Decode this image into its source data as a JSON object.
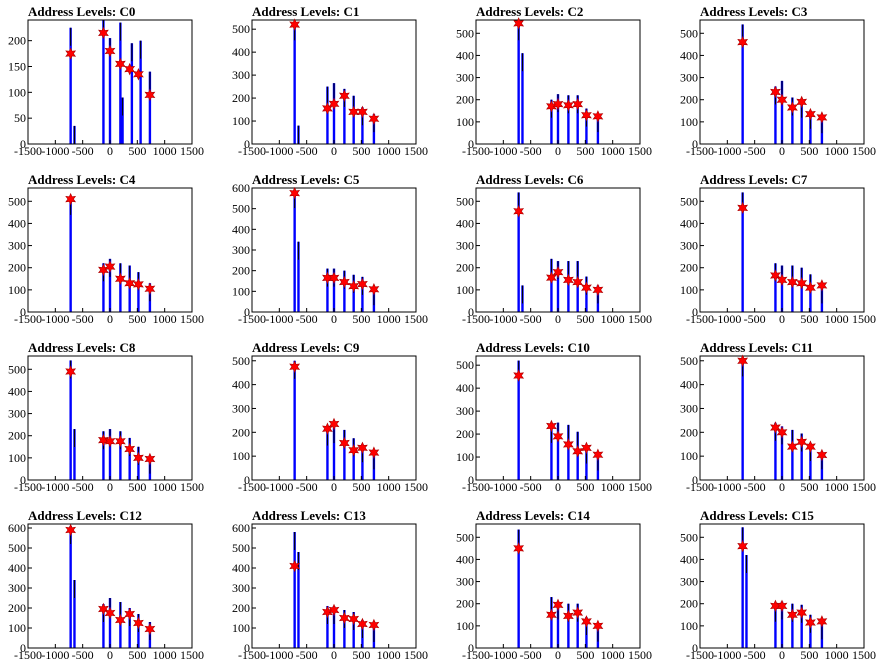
{
  "colors": {
    "histogram": "#0000ff",
    "peak_line": "#000000",
    "marker": "#ff0000",
    "marker_edge": "#aa0000",
    "frame": "#000000"
  },
  "chart_data": [
    {
      "type": "bar",
      "title": "Address Levels: C0",
      "xlim": [
        -1500,
        1500
      ],
      "ylim": [
        0,
        240
      ],
      "x_ticks": [
        -1500,
        -1000,
        -500,
        0,
        500,
        1000,
        1500
      ],
      "y_ticks": [
        0,
        50,
        100,
        150,
        200
      ],
      "histogram_x": [
        -720,
        -650,
        -120,
        0,
        190,
        230,
        400,
        560,
        730
      ],
      "histogram_y": [
        225,
        35,
        240,
        205,
        235,
        90,
        195,
        200,
        140
      ],
      "marker_x": [
        -720,
        -120,
        0,
        190,
        360,
        520,
        730
      ],
      "marker_y": [
        175,
        215,
        180,
        155,
        145,
        135,
        95
      ]
    },
    {
      "type": "bar",
      "title": "Address Levels: C1",
      "xlim": [
        -1500,
        1500
      ],
      "ylim": [
        0,
        540
      ],
      "x_ticks": [
        -1500,
        -1000,
        -500,
        0,
        500,
        1000,
        1500
      ],
      "y_ticks": [
        0,
        100,
        200,
        300,
        400,
        500
      ],
      "histogram_x": [
        -720,
        -650,
        -120,
        0,
        190,
        360,
        520,
        730
      ],
      "histogram_y": [
        530,
        80,
        250,
        265,
        240,
        210,
        160,
        130
      ],
      "marker_x": [
        -720,
        -120,
        0,
        190,
        360,
        520,
        730
      ],
      "marker_y": [
        520,
        155,
        175,
        210,
        140,
        140,
        110
      ]
    },
    {
      "type": "bar",
      "title": "Address Levels: C2",
      "xlim": [
        -1500,
        1500
      ],
      "ylim": [
        0,
        560
      ],
      "x_ticks": [
        -1500,
        -1000,
        -500,
        0,
        500,
        1000,
        1500
      ],
      "y_ticks": [
        0,
        100,
        200,
        300,
        400,
        500
      ],
      "histogram_x": [
        -720,
        -650,
        -120,
        0,
        190,
        360,
        520,
        730
      ],
      "histogram_y": [
        550,
        410,
        200,
        225,
        220,
        220,
        160,
        135
      ],
      "marker_x": [
        -720,
        -120,
        0,
        190,
        360,
        520,
        730
      ],
      "marker_y": [
        545,
        170,
        180,
        175,
        180,
        130,
        125
      ]
    },
    {
      "type": "bar",
      "title": "Address Levels: C3",
      "xlim": [
        -1500,
        1500
      ],
      "ylim": [
        0,
        560
      ],
      "x_ticks": [
        -1500,
        -1000,
        -500,
        0,
        500,
        1000,
        1500
      ],
      "y_ticks": [
        0,
        100,
        200,
        300,
        400,
        500
      ],
      "histogram_x": [
        -720,
        -120,
        0,
        190,
        360,
        520,
        730
      ],
      "histogram_y": [
        540,
        260,
        285,
        210,
        200,
        150,
        130
      ],
      "marker_x": [
        -720,
        -120,
        0,
        190,
        360,
        520,
        730
      ],
      "marker_y": [
        460,
        235,
        200,
        165,
        190,
        135,
        120
      ]
    },
    {
      "type": "bar",
      "title": "Address Levels: C4",
      "xlim": [
        -1500,
        1500
      ],
      "ylim": [
        0,
        560
      ],
      "x_ticks": [
        -1500,
        -1000,
        -500,
        0,
        500,
        1000,
        1500
      ],
      "y_ticks": [
        0,
        100,
        200,
        300,
        400,
        500
      ],
      "histogram_x": [
        -720,
        -120,
        0,
        190,
        360,
        520,
        730
      ],
      "histogram_y": [
        520,
        220,
        240,
        220,
        210,
        180,
        130
      ],
      "marker_x": [
        -720,
        -120,
        0,
        190,
        360,
        520,
        730
      ],
      "marker_y": [
        510,
        190,
        205,
        150,
        130,
        125,
        105
      ]
    },
    {
      "type": "bar",
      "title": "Address Levels: C5",
      "xlim": [
        -1500,
        1500
      ],
      "ylim": [
        0,
        600
      ],
      "x_ticks": [
        -1500,
        -1000,
        -500,
        0,
        500,
        1000,
        1500
      ],
      "y_ticks": [
        0,
        100,
        200,
        300,
        400,
        500,
        600
      ],
      "histogram_x": [
        -720,
        -650,
        -120,
        0,
        190,
        360,
        520,
        730
      ],
      "histogram_y": [
        590,
        340,
        210,
        210,
        200,
        180,
        170,
        120
      ],
      "marker_x": [
        -720,
        -120,
        0,
        190,
        360,
        520,
        730
      ],
      "marker_y": [
        575,
        165,
        165,
        145,
        125,
        135,
        110
      ]
    },
    {
      "type": "bar",
      "title": "Address Levels: C6",
      "xlim": [
        -1500,
        1500
      ],
      "ylim": [
        0,
        560
      ],
      "x_ticks": [
        -1500,
        -1000,
        -500,
        0,
        500,
        1000,
        1500
      ],
      "y_ticks": [
        0,
        100,
        200,
        300,
        400,
        500
      ],
      "histogram_x": [
        -720,
        -650,
        -120,
        0,
        190,
        360,
        520,
        730
      ],
      "histogram_y": [
        540,
        120,
        240,
        230,
        230,
        230,
        160,
        120
      ],
      "marker_x": [
        -720,
        -120,
        0,
        190,
        360,
        520,
        730
      ],
      "marker_y": [
        455,
        155,
        180,
        145,
        135,
        110,
        100
      ]
    },
    {
      "type": "bar",
      "title": "Address Levels: C7",
      "xlim": [
        -1500,
        1500
      ],
      "ylim": [
        0,
        560
      ],
      "x_ticks": [
        -1500,
        -1000,
        -500,
        0,
        500,
        1000,
        1500
      ],
      "y_ticks": [
        0,
        100,
        200,
        300,
        400,
        500
      ],
      "histogram_x": [
        -720,
        -120,
        0,
        190,
        360,
        520,
        730
      ],
      "histogram_y": [
        540,
        220,
        210,
        210,
        200,
        170,
        120
      ],
      "marker_x": [
        -720,
        -120,
        0,
        190,
        360,
        520,
        730
      ],
      "marker_y": [
        470,
        165,
        145,
        135,
        130,
        110,
        120
      ]
    },
    {
      "type": "bar",
      "title": "Address Levels: C8",
      "xlim": [
        -1500,
        1500
      ],
      "ylim": [
        0,
        560
      ],
      "x_ticks": [
        -1500,
        -1000,
        -500,
        0,
        500,
        1000,
        1500
      ],
      "y_ticks": [
        0,
        100,
        200,
        300,
        400,
        500
      ],
      "histogram_x": [
        -720,
        -650,
        -120,
        0,
        190,
        360,
        520,
        730
      ],
      "histogram_y": [
        540,
        230,
        220,
        230,
        220,
        190,
        150,
        110
      ],
      "marker_x": [
        -720,
        -120,
        0,
        190,
        360,
        520,
        730
      ],
      "marker_y": [
        490,
        180,
        175,
        175,
        140,
        100,
        95
      ]
    },
    {
      "type": "bar",
      "title": "Address Levels: C9",
      "xlim": [
        -1500,
        1500
      ],
      "ylim": [
        0,
        520
      ],
      "x_ticks": [
        -1500,
        -1000,
        -500,
        0,
        500,
        1000,
        1500
      ],
      "y_ticks": [
        0,
        100,
        200,
        300,
        400,
        500
      ],
      "histogram_x": [
        -720,
        -120,
        0,
        190,
        360,
        520,
        730
      ],
      "histogram_y": [
        500,
        220,
        230,
        210,
        175,
        150,
        120
      ],
      "marker_x": [
        -720,
        -120,
        0,
        190,
        360,
        520,
        730
      ],
      "marker_y": [
        475,
        215,
        235,
        155,
        125,
        135,
        115
      ]
    },
    {
      "type": "bar",
      "title": "Address Levels: C10",
      "xlim": [
        -1500,
        1500
      ],
      "ylim": [
        0,
        540
      ],
      "x_ticks": [
        -1500,
        -1000,
        -500,
        0,
        500,
        1000,
        1500
      ],
      "y_ticks": [
        0,
        100,
        200,
        300,
        400,
        500
      ],
      "histogram_x": [
        -720,
        -120,
        0,
        190,
        360,
        520,
        730
      ],
      "histogram_y": [
        520,
        240,
        250,
        240,
        210,
        150,
        120
      ],
      "marker_x": [
        -720,
        -120,
        0,
        190,
        360,
        520,
        730
      ],
      "marker_y": [
        455,
        235,
        190,
        155,
        125,
        140,
        110
      ]
    },
    {
      "type": "bar",
      "title": "Address Levels: C11",
      "xlim": [
        -1500,
        1500
      ],
      "ylim": [
        0,
        520
      ],
      "x_ticks": [
        -1500,
        -1000,
        -500,
        0,
        500,
        1000,
        1500
      ],
      "y_ticks": [
        0,
        100,
        200,
        300,
        400,
        500
      ],
      "histogram_x": [
        -720,
        -120,
        0,
        190,
        360,
        520,
        730
      ],
      "histogram_y": [
        510,
        240,
        225,
        210,
        195,
        155,
        120
      ],
      "marker_x": [
        -720,
        -120,
        0,
        190,
        360,
        520,
        730
      ],
      "marker_y": [
        500,
        220,
        200,
        140,
        160,
        140,
        105
      ]
    },
    {
      "type": "bar",
      "title": "Address Levels: C12",
      "xlim": [
        -1500,
        1500
      ],
      "ylim": [
        0,
        620
      ],
      "x_ticks": [
        -1500,
        -1000,
        -500,
        0,
        500,
        1000,
        1500
      ],
      "y_ticks": [
        0,
        100,
        200,
        300,
        400,
        500,
        600
      ],
      "histogram_x": [
        -720,
        -650,
        -120,
        0,
        190,
        360,
        520,
        730
      ],
      "histogram_y": [
        610,
        340,
        220,
        250,
        230,
        200,
        170,
        130
      ],
      "marker_x": [
        -720,
        -120,
        0,
        190,
        360,
        520,
        730
      ],
      "marker_y": [
        590,
        195,
        175,
        140,
        170,
        125,
        95
      ]
    },
    {
      "type": "bar",
      "title": "Address Levels: C13",
      "xlim": [
        -1500,
        1500
      ],
      "ylim": [
        0,
        620
      ],
      "x_ticks": [
        -1500,
        -1000,
        -500,
        0,
        500,
        1000,
        1500
      ],
      "y_ticks": [
        0,
        100,
        200,
        300,
        400,
        500,
        600
      ],
      "histogram_x": [
        -720,
        -650,
        -120,
        0,
        190,
        360,
        520,
        730
      ],
      "histogram_y": [
        580,
        480,
        210,
        210,
        190,
        180,
        140,
        120
      ],
      "marker_x": [
        -720,
        -120,
        0,
        190,
        360,
        520,
        730
      ],
      "marker_y": [
        410,
        180,
        190,
        150,
        145,
        120,
        115
      ]
    },
    {
      "type": "bar",
      "title": "Address Levels: C14",
      "xlim": [
        -1500,
        1500
      ],
      "ylim": [
        0,
        560
      ],
      "x_ticks": [
        -1500,
        -1000,
        -500,
        0,
        500,
        1000,
        1500
      ],
      "y_ticks": [
        0,
        100,
        200,
        300,
        400,
        500
      ],
      "histogram_x": [
        -720,
        -120,
        0,
        190,
        360,
        520,
        730
      ],
      "histogram_y": [
        535,
        230,
        210,
        200,
        200,
        140,
        110
      ],
      "marker_x": [
        -720,
        -120,
        0,
        190,
        360,
        520,
        730
      ],
      "marker_y": [
        450,
        150,
        195,
        145,
        160,
        120,
        100
      ]
    },
    {
      "type": "bar",
      "title": "Address Levels: C15",
      "xlim": [
        -1500,
        1500
      ],
      "ylim": [
        0,
        560
      ],
      "x_ticks": [
        -1500,
        -1000,
        -500,
        0,
        500,
        1000,
        1500
      ],
      "y_ticks": [
        0,
        100,
        200,
        300,
        400,
        500
      ],
      "histogram_x": [
        -720,
        -650,
        -120,
        0,
        190,
        360,
        520,
        730
      ],
      "histogram_y": [
        545,
        420,
        200,
        210,
        200,
        195,
        150,
        120
      ],
      "marker_x": [
        -720,
        -120,
        0,
        190,
        360,
        520,
        730
      ],
      "marker_y": [
        460,
        190,
        190,
        150,
        160,
        115,
        120
      ]
    }
  ]
}
